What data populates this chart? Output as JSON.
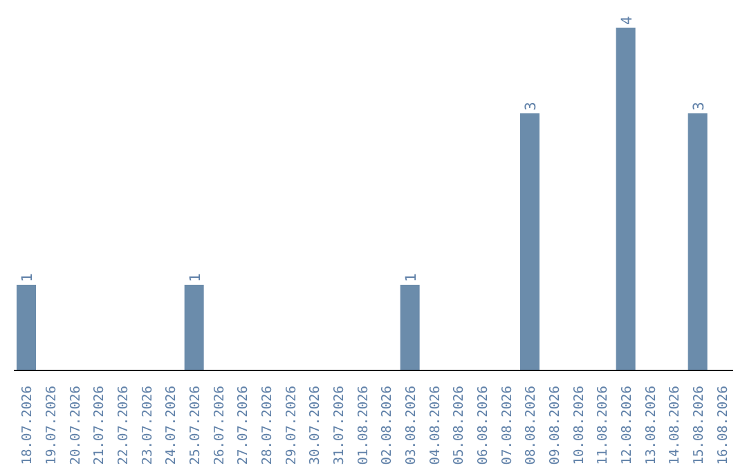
{
  "chart_data": {
    "type": "bar",
    "categories": [
      "18.07.2026",
      "19.07.2026",
      "20.07.2026",
      "21.07.2026",
      "22.07.2026",
      "23.07.2026",
      "24.07.2026",
      "25.07.2026",
      "26.07.2026",
      "27.07.2026",
      "28.07.2026",
      "29.07.2026",
      "30.07.2026",
      "31.07.2026",
      "01.08.2026",
      "02.08.2026",
      "03.08.2026",
      "04.08.2026",
      "05.08.2026",
      "06.08.2026",
      "07.08.2026",
      "08.08.2026",
      "09.08.2026",
      "10.08.2026",
      "11.08.2026",
      "12.08.2026",
      "13.08.2026",
      "14.08.2026",
      "15.08.2026",
      "16.08.2026"
    ],
    "values": [
      1,
      0,
      0,
      0,
      0,
      0,
      0,
      1,
      0,
      0,
      0,
      0,
      0,
      0,
      0,
      0,
      1,
      0,
      0,
      0,
      0,
      3,
      0,
      0,
      0,
      4,
      0,
      0,
      3,
      0
    ],
    "value_labels": [
      "1",
      null,
      null,
      null,
      null,
      null,
      null,
      "1",
      null,
      null,
      null,
      null,
      null,
      null,
      null,
      null,
      "1",
      null,
      null,
      null,
      null,
      "3",
      null,
      null,
      null,
      "4",
      null,
      null,
      "3",
      null
    ],
    "color": "#6b8cab",
    "grid": false
  }
}
